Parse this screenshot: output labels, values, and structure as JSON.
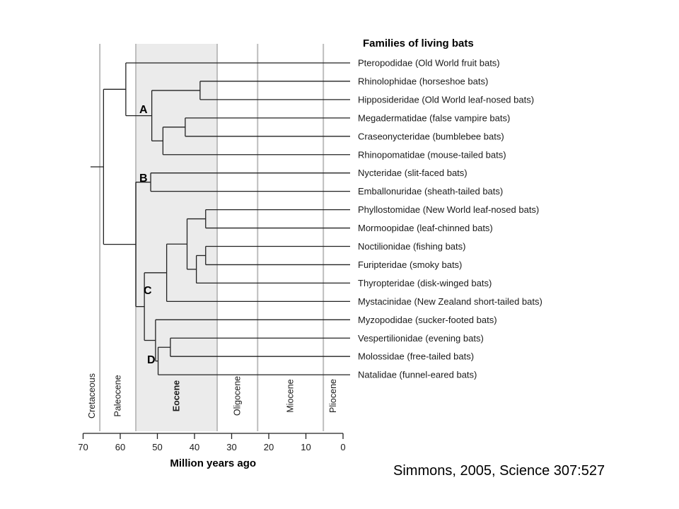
{
  "title": "Families of living bats",
  "axis": {
    "title": "Million years ago",
    "ticks": [
      70,
      60,
      50,
      40,
      30,
      20,
      10,
      0
    ]
  },
  "epochs": [
    {
      "name": "Cretaceous",
      "from": 70,
      "to": 65.5,
      "bold": false
    },
    {
      "name": "Paleocene",
      "from": 65.5,
      "to": 55.8,
      "bold": false
    },
    {
      "name": "Eocene",
      "from": 55.8,
      "to": 33.9,
      "bold": true,
      "shaded": true
    },
    {
      "name": "Oligocene",
      "from": 33.9,
      "to": 23.0,
      "bold": false
    },
    {
      "name": "Miocene",
      "from": 23.0,
      "to": 5.3,
      "bold": false
    },
    {
      "name": "Pliocene",
      "from": 5.3,
      "to": 0,
      "bold": false
    }
  ],
  "taxa": [
    "Pteropodidae (Old World fruit bats)",
    "Rhinolophidae (horseshoe bats)",
    "Hipposideridae (Old World leaf-nosed bats)",
    "Megadermatidae (false vampire bats)",
    "Craseonycteridae (bumblebee bats)",
    "Rhinopomatidae (mouse-tailed bats)",
    "Nycteridae (slit-faced bats)",
    "Emballonuridae (sheath-tailed bats)",
    "Phyllostomidae (New World leaf-nosed bats)",
    "Mormoopidae (leaf-chinned bats)",
    "Noctilionidae (fishing bats)",
    "Furipteridae (smoky bats)",
    "Thyropteridae (disk-winged bats)",
    "Mystacinidae (New Zealand short-tailed bats)",
    "Myzopodidae (sucker-footed bats)",
    "Vespertilionidae (evening bats)",
    "Molossidae (free-tailed bats)",
    "Natalidae (funnel-eared bats)"
  ],
  "clades": [
    {
      "label": "A"
    },
    {
      "label": "B"
    },
    {
      "label": "C"
    },
    {
      "label": "D"
    }
  ],
  "citation": "Simmons, 2005, Science 307:527"
}
